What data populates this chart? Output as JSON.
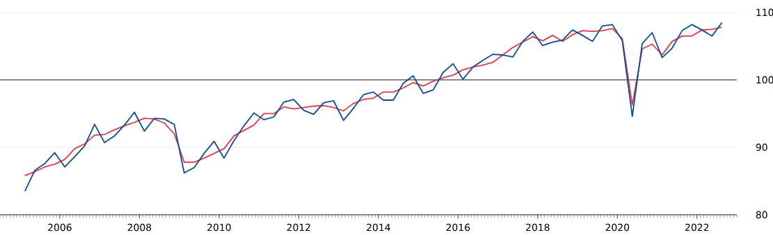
{
  "chart_data": {
    "type": "line",
    "x": [
      2005.125,
      2005.375,
      2005.625,
      2005.875,
      2006.125,
      2006.375,
      2006.625,
      2006.875,
      2007.125,
      2007.375,
      2007.625,
      2007.875,
      2008.125,
      2008.375,
      2008.625,
      2008.875,
      2009.125,
      2009.375,
      2009.625,
      2009.875,
      2010.125,
      2010.375,
      2010.625,
      2010.875,
      2011.125,
      2011.375,
      2011.625,
      2011.875,
      2012.125,
      2012.375,
      2012.625,
      2012.875,
      2013.125,
      2013.375,
      2013.625,
      2013.875,
      2014.125,
      2014.375,
      2014.625,
      2014.875,
      2015.125,
      2015.375,
      2015.625,
      2015.875,
      2016.125,
      2016.375,
      2016.625,
      2016.875,
      2017.125,
      2017.375,
      2017.625,
      2017.875,
      2018.125,
      2018.375,
      2018.625,
      2018.875,
      2019.125,
      2019.375,
      2019.625,
      2019.875,
      2020.125,
      2020.375,
      2020.625,
      2020.875,
      2021.125,
      2021.375,
      2021.625,
      2021.875,
      2022.125,
      2022.375,
      2022.625
    ],
    "series": [
      {
        "color": "#e03a4a",
        "values": [
          85.8,
          86.4,
          87.1,
          87.5,
          88.2,
          89.8,
          90.5,
          91.8,
          91.9,
          92.6,
          93.2,
          93.7,
          94.3,
          94.2,
          93.6,
          92.0,
          87.8,
          87.8,
          88.4,
          89.1,
          89.8,
          91.7,
          92.5,
          93.3,
          95.0,
          95.0,
          96.0,
          95.7,
          95.9,
          96.1,
          96.2,
          95.9,
          95.4,
          96.5,
          97.1,
          97.3,
          98.2,
          98.2,
          98.8,
          99.6,
          99.1,
          99.8,
          100.3,
          100.7,
          101.5,
          101.9,
          102.2,
          102.6,
          103.7,
          104.8,
          105.6,
          106.4,
          105.8,
          106.6,
          105.7,
          106.7,
          107.3,
          107.2,
          107.3,
          107.6,
          106.1,
          96.3,
          104.6,
          105.3,
          103.7,
          105.7,
          106.5,
          106.5,
          107.4,
          107.5,
          107.8
        ]
      },
      {
        "color": "#0d4c92",
        "values": [
          83.5,
          86.6,
          87.6,
          89.2,
          87.1,
          88.6,
          90.2,
          93.4,
          90.7,
          91.7,
          93.3,
          95.2,
          92.4,
          94.3,
          94.2,
          93.4,
          86.2,
          87.0,
          89.1,
          90.9,
          88.4,
          91.0,
          93.2,
          95.1,
          94.1,
          94.5,
          96.7,
          97.1,
          95.5,
          94.9,
          96.6,
          96.9,
          94.0,
          95.8,
          97.8,
          98.2,
          97.0,
          97.0,
          99.5,
          100.6,
          98.0,
          98.5,
          101.1,
          102.4,
          100.1,
          101.9,
          102.9,
          103.8,
          103.7,
          103.4,
          105.7,
          107.1,
          105.1,
          105.6,
          105.9,
          107.4,
          106.6,
          105.7,
          108.0,
          108.2,
          105.8,
          94.6,
          105.4,
          107.0,
          103.3,
          104.7,
          107.3,
          108.2,
          107.4,
          106.5,
          108.5
        ]
      }
    ],
    "xlim": [
      2004.5,
      2023.0
    ],
    "xticks": [
      2006,
      2008,
      2010,
      2012,
      2014,
      2016,
      2018,
      2020,
      2022
    ],
    "ylim": [
      80,
      110
    ],
    "yticks": [
      80,
      90,
      100,
      110
    ],
    "grid": "y",
    "legend": false,
    "marker": "none",
    "line_style": "solid",
    "ref_lines": [
      {
        "axis": "y",
        "value": 100,
        "color": "#000000"
      }
    ]
  }
}
